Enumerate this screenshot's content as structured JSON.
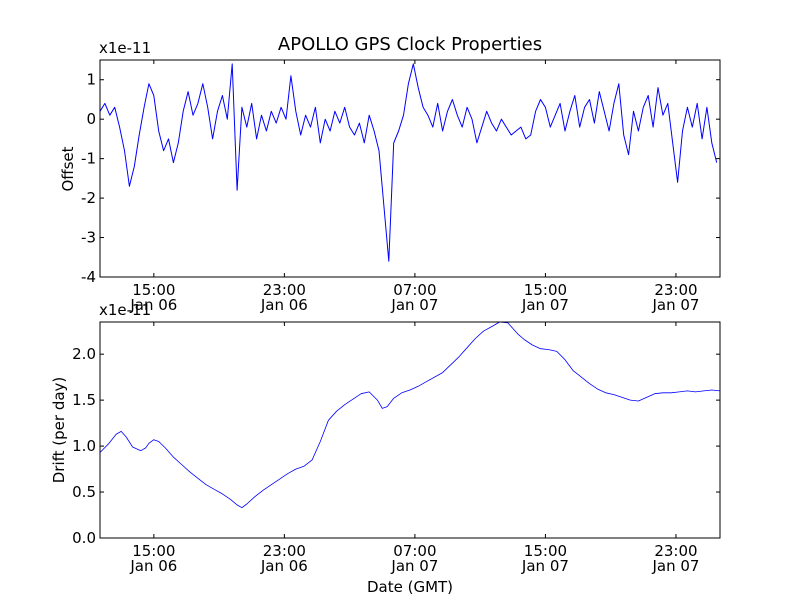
{
  "chart_data": [
    {
      "type": "line",
      "title": "APOLLO GPS Clock Properties",
      "ylabel": "Offset",
      "xlabel": "",
      "y_multiplier": "x1e-11",
      "ylim": [
        -4,
        1.5
      ],
      "y_ticks": [
        "-4",
        "-3",
        "-2",
        "-1",
        "0",
        "1"
      ],
      "y_tick_values": [
        -4,
        -3,
        -2,
        -1,
        0,
        1
      ],
      "x_range_hours": [
        0,
        38
      ],
      "x_ticks": [
        {
          "hours": 3.3,
          "time": "15:00",
          "date": "Jan 06"
        },
        {
          "hours": 11.3,
          "time": "23:00",
          "date": "Jan 06"
        },
        {
          "hours": 19.3,
          "time": "07:00",
          "date": "Jan 07"
        },
        {
          "hours": 27.3,
          "time": "15:00",
          "date": "Jan 07"
        },
        {
          "hours": 35.3,
          "time": "23:00",
          "date": "Jan 07"
        }
      ],
      "series": [
        {
          "name": "Offset",
          "color": "#0000ff",
          "x": [
            0,
            0.3,
            0.6,
            0.9,
            1.2,
            1.5,
            1.8,
            2.1,
            2.4,
            2.7,
            3.0,
            3.3,
            3.6,
            3.9,
            4.2,
            4.5,
            4.8,
            5.1,
            5.4,
            5.7,
            6.0,
            6.3,
            6.6,
            6.9,
            7.2,
            7.5,
            7.8,
            8.1,
            8.4,
            8.7,
            9.0,
            9.3,
            9.6,
            9.9,
            10.2,
            10.5,
            10.8,
            11.1,
            11.4,
            11.7,
            12.0,
            12.3,
            12.6,
            12.9,
            13.2,
            13.5,
            13.8,
            14.1,
            14.4,
            14.7,
            15.0,
            15.3,
            15.6,
            15.9,
            16.2,
            16.5,
            16.8,
            17.1,
            17.4,
            17.7,
            18.0,
            18.3,
            18.6,
            18.9,
            19.2,
            19.5,
            19.8,
            20.1,
            20.4,
            20.7,
            21.0,
            21.3,
            21.6,
            21.9,
            22.2,
            22.5,
            22.8,
            23.1,
            23.4,
            23.7,
            24.0,
            24.3,
            24.6,
            24.9,
            25.2,
            25.5,
            25.8,
            26.1,
            26.4,
            26.7,
            27.0,
            27.3,
            27.6,
            27.9,
            28.2,
            28.5,
            28.8,
            29.1,
            29.4,
            29.7,
            30.0,
            30.3,
            30.6,
            30.9,
            31.2,
            31.5,
            31.8,
            32.1,
            32.4,
            32.7,
            33.0,
            33.3,
            33.6,
            33.9,
            34.2,
            34.5,
            34.8,
            35.1,
            35.4,
            35.7,
            36.0,
            36.3,
            36.6,
            36.9,
            37.2,
            37.5,
            37.8
          ],
          "values": [
            0.2,
            0.4,
            0.1,
            0.3,
            -0.2,
            -0.8,
            -1.7,
            -1.2,
            -0.4,
            0.3,
            0.9,
            0.6,
            -0.3,
            -0.8,
            -0.5,
            -1.1,
            -0.6,
            0.2,
            0.7,
            0.1,
            0.4,
            0.9,
            0.3,
            -0.5,
            0.2,
            0.6,
            0.0,
            1.4,
            -1.8,
            0.3,
            -0.2,
            0.4,
            -0.5,
            0.1,
            -0.3,
            0.2,
            -0.1,
            0.3,
            0.0,
            1.1,
            0.2,
            -0.4,
            0.1,
            -0.2,
            0.3,
            -0.6,
            0.0,
            -0.3,
            0.2,
            -0.1,
            0.3,
            -0.2,
            -0.4,
            -0.1,
            -0.6,
            0.1,
            -0.3,
            -0.8,
            -2.2,
            -3.6,
            -0.6,
            -0.3,
            0.1,
            0.9,
            1.4,
            0.8,
            0.3,
            0.1,
            -0.2,
            0.4,
            -0.3,
            0.2,
            0.5,
            0.1,
            -0.2,
            0.3,
            0.0,
            -0.6,
            -0.2,
            0.2,
            -0.1,
            -0.3,
            0.0,
            -0.2,
            -0.4,
            -0.3,
            -0.2,
            -0.5,
            -0.4,
            0.2,
            0.5,
            0.3,
            -0.2,
            0.1,
            0.4,
            -0.3,
            0.2,
            0.6,
            -0.2,
            0.3,
            0.5,
            -0.1,
            0.7,
            0.2,
            -0.3,
            0.4,
            0.9,
            -0.4,
            -0.9,
            0.2,
            -0.3,
            0.3,
            0.6,
            -0.2,
            0.8,
            0.1,
            0.4,
            -0.6,
            -1.6,
            -0.3,
            0.3,
            -0.2,
            0.4,
            -0.5,
            0.3,
            -0.6,
            -1.1
          ]
        }
      ]
    },
    {
      "type": "line",
      "title": "",
      "ylabel": "Drift (per day)",
      "xlabel": "Date (GMT)",
      "y_multiplier": "x1e-11",
      "ylim": [
        0.0,
        2.35
      ],
      "y_ticks": [
        "0.0",
        "0.5",
        "1.0",
        "1.5",
        "2.0"
      ],
      "y_tick_values": [
        0.0,
        0.5,
        1.0,
        1.5,
        2.0
      ],
      "x_range_hours": [
        0,
        38
      ],
      "x_ticks": [
        {
          "hours": 3.3,
          "time": "15:00",
          "date": "Jan 06"
        },
        {
          "hours": 11.3,
          "time": "23:00",
          "date": "Jan 06"
        },
        {
          "hours": 19.3,
          "time": "07:00",
          "date": "Jan 07"
        },
        {
          "hours": 27.3,
          "time": "15:00",
          "date": "Jan 07"
        },
        {
          "hours": 35.3,
          "time": "23:00",
          "date": "Jan 07"
        }
      ],
      "series": [
        {
          "name": "Drift",
          "color": "#0000ff",
          "x": [
            0,
            0.5,
            1.0,
            1.3,
            1.6,
            2.0,
            2.5,
            2.8,
            3.0,
            3.3,
            3.6,
            4.0,
            4.5,
            5.0,
            5.5,
            6.0,
            6.5,
            7.0,
            7.5,
            8.0,
            8.4,
            8.7,
            9.0,
            9.5,
            10.0,
            10.5,
            11.0,
            11.5,
            12.0,
            12.5,
            13.0,
            13.5,
            14.0,
            14.5,
            15.0,
            15.5,
            16.0,
            16.5,
            17.0,
            17.3,
            17.6,
            18.0,
            18.5,
            19.0,
            19.5,
            20.0,
            21.0,
            22.0,
            22.5,
            23.0,
            23.5,
            24.0,
            24.5,
            25.0,
            25.3,
            25.6,
            26.0,
            26.5,
            27.0,
            27.5,
            28.0,
            28.5,
            29.0,
            29.5,
            30.0,
            30.5,
            31.0,
            31.5,
            32.0,
            32.5,
            33.0,
            33.5,
            34.0,
            34.5,
            35.0,
            35.5,
            36.0,
            36.5,
            37.0,
            37.5,
            38.0
          ],
          "values": [
            0.93,
            1.02,
            1.13,
            1.16,
            1.1,
            0.99,
            0.95,
            0.98,
            1.03,
            1.07,
            1.05,
            0.98,
            0.88,
            0.8,
            0.72,
            0.65,
            0.58,
            0.53,
            0.48,
            0.42,
            0.36,
            0.33,
            0.37,
            0.45,
            0.52,
            0.58,
            0.64,
            0.7,
            0.75,
            0.78,
            0.85,
            1.05,
            1.28,
            1.38,
            1.45,
            1.51,
            1.57,
            1.59,
            1.5,
            1.41,
            1.43,
            1.52,
            1.58,
            1.61,
            1.65,
            1.7,
            1.8,
            1.97,
            2.07,
            2.17,
            2.25,
            2.3,
            2.35,
            2.34,
            2.28,
            2.22,
            2.16,
            2.1,
            2.06,
            2.05,
            2.03,
            1.94,
            1.82,
            1.75,
            1.68,
            1.62,
            1.58,
            1.56,
            1.53,
            1.5,
            1.49,
            1.53,
            1.57,
            1.58,
            1.58,
            1.59,
            1.6,
            1.59,
            1.6,
            1.61,
            1.6
          ]
        }
      ]
    }
  ]
}
